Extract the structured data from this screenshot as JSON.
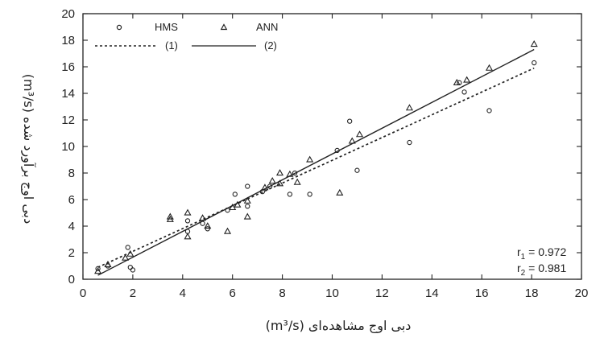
{
  "chart_data": {
    "type": "scatter",
    "xlabel": "دبی اوج مشاهده‌ای (m³/s)",
    "ylabel": "دبی اوج برآورد شده (m³/s)",
    "xlim": [
      0,
      20
    ],
    "ylim": [
      0,
      20
    ],
    "xticks": [
      "0",
      "2",
      "4",
      "6",
      "8",
      "10",
      "12",
      "14",
      "16",
      "18",
      "20"
    ],
    "yticks": [
      "0",
      "2",
      "4",
      "6",
      "8",
      "10",
      "12",
      "14",
      "16",
      "18",
      "20"
    ],
    "grid": false,
    "legend_position": "top-left",
    "series": [
      {
        "name": "HMS",
        "marker": "circle",
        "points": [
          [
            0.6,
            0.8
          ],
          [
            1.0,
            1.0
          ],
          [
            1.8,
            2.4
          ],
          [
            1.9,
            0.9
          ],
          [
            2.0,
            0.7
          ],
          [
            4.2,
            3.6
          ],
          [
            4.2,
            4.4
          ],
          [
            4.8,
            4.2
          ],
          [
            5.0,
            3.8
          ],
          [
            5.8,
            5.2
          ],
          [
            6.1,
            6.4
          ],
          [
            6.6,
            5.5
          ],
          [
            6.6,
            7.0
          ],
          [
            7.2,
            6.6
          ],
          [
            7.5,
            7.0
          ],
          [
            8.3,
            6.4
          ],
          [
            8.5,
            8.0
          ],
          [
            9.1,
            6.4
          ],
          [
            10.2,
            9.7
          ],
          [
            10.7,
            11.9
          ],
          [
            11.0,
            8.2
          ],
          [
            13.1,
            10.3
          ],
          [
            15.1,
            14.8
          ],
          [
            15.3,
            14.1
          ],
          [
            16.3,
            12.7
          ],
          [
            18.1,
            16.3
          ]
        ]
      },
      {
        "name": "ANN",
        "marker": "triangle",
        "points": [
          [
            0.6,
            0.6
          ],
          [
            1.0,
            1.1
          ],
          [
            1.7,
            1.6
          ],
          [
            1.9,
            1.9
          ],
          [
            3.5,
            4.5
          ],
          [
            3.5,
            4.7
          ],
          [
            4.2,
            3.2
          ],
          [
            4.2,
            5.0
          ],
          [
            4.8,
            4.6
          ],
          [
            5.0,
            4.0
          ],
          [
            5.8,
            3.6
          ],
          [
            6.0,
            5.4
          ],
          [
            6.2,
            5.6
          ],
          [
            6.6,
            4.7
          ],
          [
            6.6,
            5.9
          ],
          [
            7.3,
            6.9
          ],
          [
            7.6,
            7.4
          ],
          [
            7.9,
            7.2
          ],
          [
            7.9,
            8.0
          ],
          [
            8.3,
            7.9
          ],
          [
            8.6,
            7.3
          ],
          [
            9.1,
            9.0
          ],
          [
            10.3,
            6.5
          ],
          [
            10.8,
            10.4
          ],
          [
            11.1,
            10.9
          ],
          [
            13.1,
            12.9
          ],
          [
            15.0,
            14.8
          ],
          [
            15.4,
            15.0
          ],
          [
            16.3,
            15.9
          ],
          [
            18.1,
            17.7
          ]
        ]
      }
    ],
    "lines": [
      {
        "name": "(1)",
        "style": "dashed",
        "x": [
          0.6,
          18.1
        ],
        "y": [
          0.9,
          15.9
        ]
      },
      {
        "name": "(2)",
        "style": "solid",
        "x": [
          0.6,
          18.1
        ],
        "y": [
          0.3,
          17.3
        ]
      }
    ],
    "stats": {
      "r1_label": "r",
      "r1_sub": "1",
      "r1_value": " = 0.972",
      "r2_label": "r",
      "r2_sub": "2",
      "r2_value": " = 0.981"
    },
    "colors": {
      "ink": "#222222",
      "background": "#ffffff"
    }
  }
}
